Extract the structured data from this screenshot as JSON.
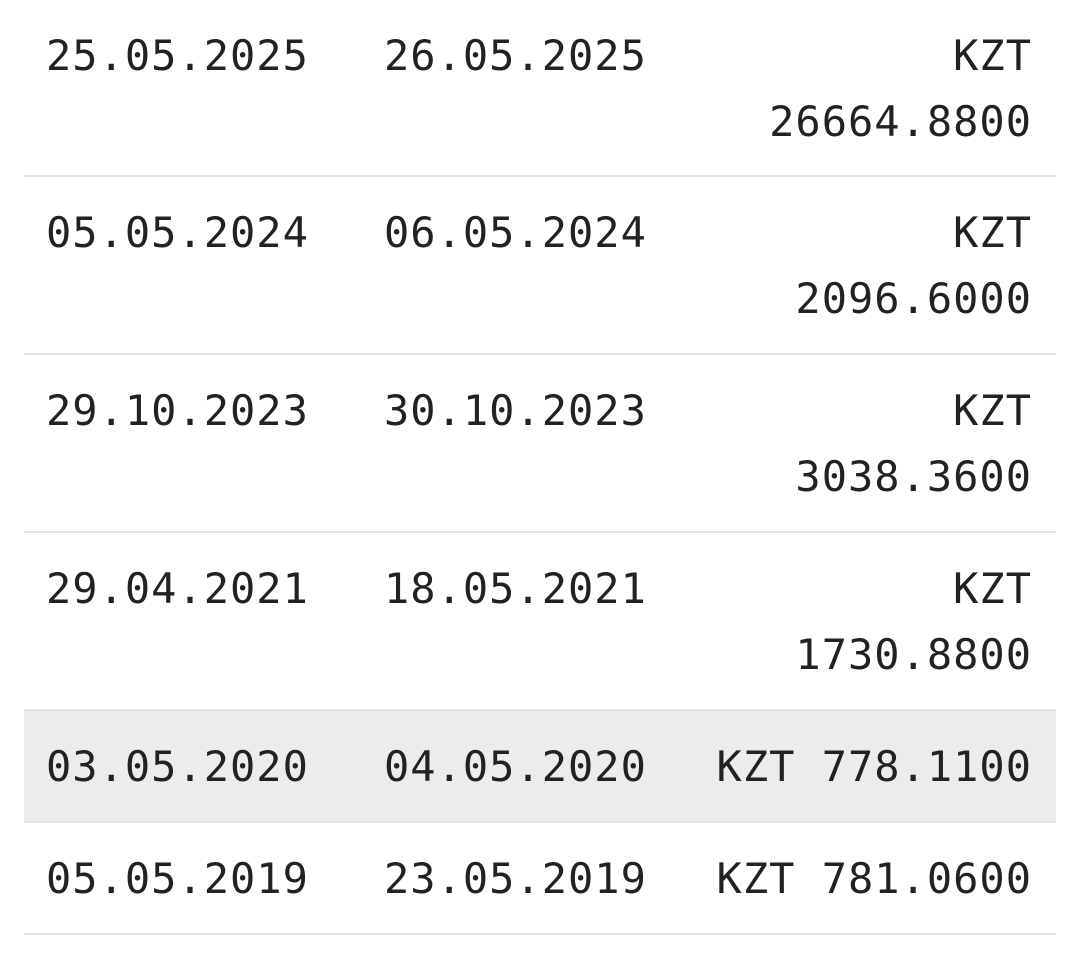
{
  "rows": [
    {
      "date_from": "25.05.2025",
      "date_to": "26.05.2025",
      "currency": "KZT",
      "amount": "26664.8800",
      "highlighted": false
    },
    {
      "date_from": "05.05.2024",
      "date_to": "06.05.2024",
      "currency": "KZT",
      "amount": "2096.6000",
      "highlighted": false
    },
    {
      "date_from": "29.10.2023",
      "date_to": "30.10.2023",
      "currency": "KZT",
      "amount": "3038.3600",
      "highlighted": false
    },
    {
      "date_from": "29.04.2021",
      "date_to": "18.05.2021",
      "currency": "KZT",
      "amount": "1730.8800",
      "highlighted": false
    },
    {
      "date_from": "03.05.2020",
      "date_to": "04.05.2020",
      "currency": "KZT",
      "amount": "778.1100",
      "highlighted": true
    },
    {
      "date_from": "05.05.2019",
      "date_to": "23.05.2019",
      "currency": "KZT",
      "amount": "781.0600",
      "highlighted": false
    }
  ],
  "colors": {
    "row_highlight": "#ececec",
    "divider": "#e4e4e4",
    "text": "#222222"
  }
}
